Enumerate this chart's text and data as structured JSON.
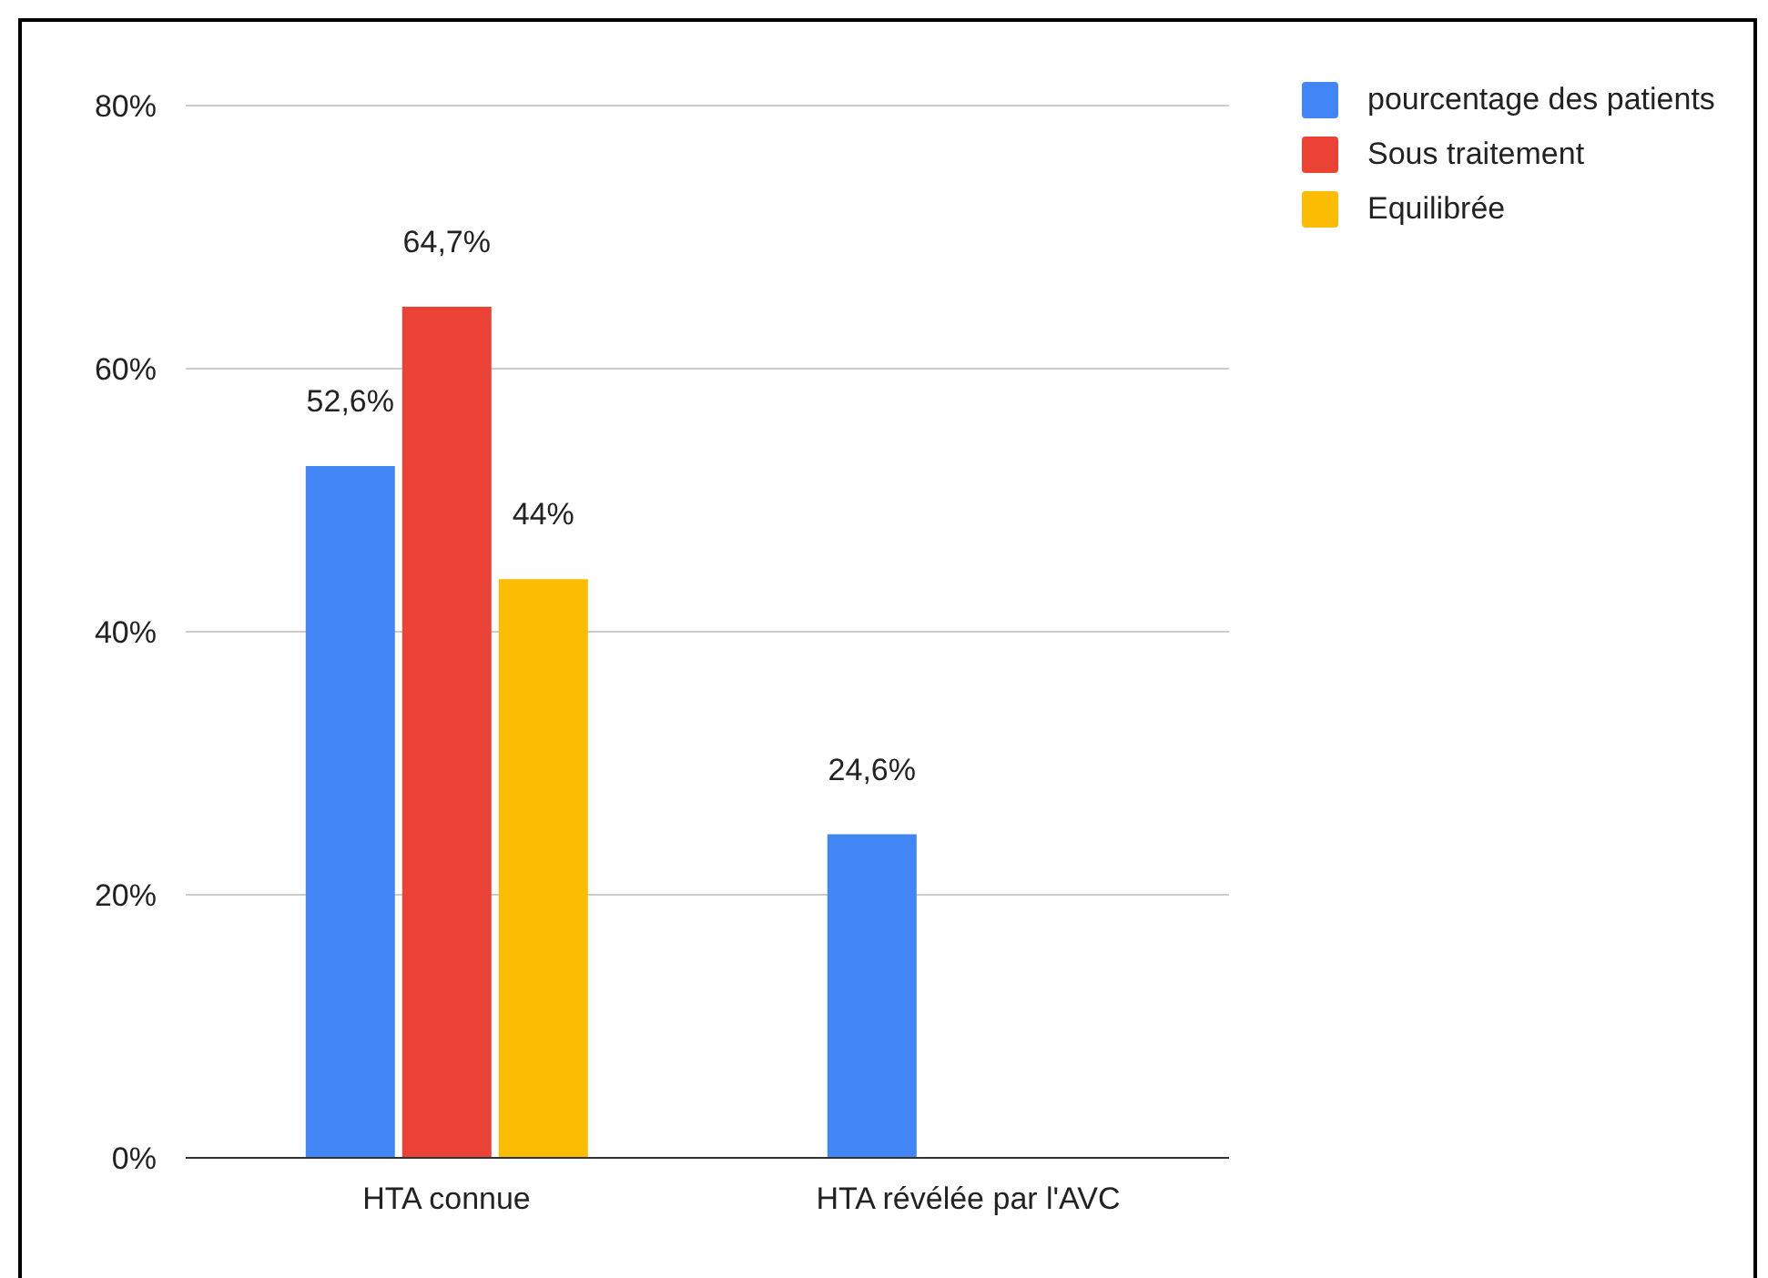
{
  "chart_data": {
    "type": "bar",
    "categories": [
      "HTA connue",
      "HTA révélée par l'AVC"
    ],
    "series": [
      {
        "name": "pourcentage des patients",
        "color": "#4285f4",
        "values": [
          52.6,
          24.6
        ],
        "value_labels": [
          "52,6%",
          "24,6%"
        ]
      },
      {
        "name": "Sous traitement",
        "color": "#ea4335",
        "values": [
          64.7,
          null
        ],
        "value_labels": [
          "64,7%",
          null
        ]
      },
      {
        "name": "Equilibrée",
        "color": "#fbbc04",
        "values": [
          44,
          null
        ],
        "value_labels": [
          "44%",
          null
        ]
      }
    ],
    "ylim": [
      0,
      80
    ],
    "yticks": [
      {
        "value": 0,
        "label": "0%"
      },
      {
        "value": 20,
        "label": "20%"
      },
      {
        "value": 40,
        "label": "40%"
      },
      {
        "value": 60,
        "label": "60%"
      },
      {
        "value": 80,
        "label": "80%"
      }
    ],
    "grid": "y",
    "legend": "top right"
  }
}
